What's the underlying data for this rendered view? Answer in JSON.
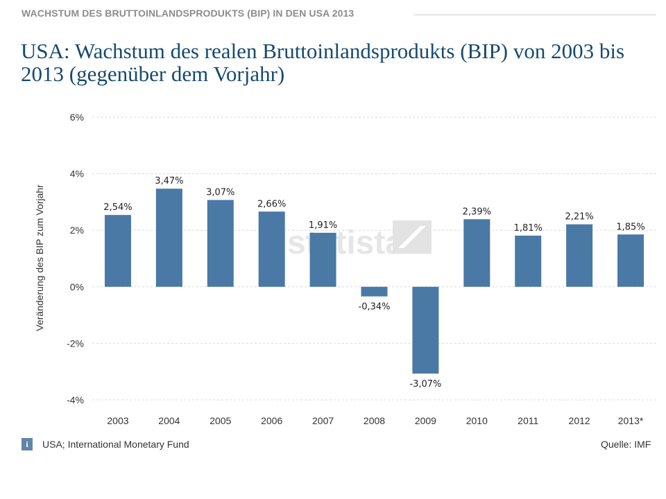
{
  "header": {
    "kicker": "WACHSTUM DES BRUTTOINLANDSPRODUKTS (BIP) IN DEN USA 2013",
    "title": "USA: Wachstum des realen Bruttoinlandsprodukts (BIP) von 2003 bis 2013 (gegenüber dem Vorjahr)"
  },
  "chart_data": {
    "type": "bar",
    "title": "USA: Wachstum des realen Bruttoinlandsprodukts (BIP) von 2003 bis 2013 (gegenüber dem Vorjahr)",
    "xlabel": "",
    "ylabel": "Veränderung des BIP zum Vorjahr",
    "categories": [
      "2003",
      "2004",
      "2005",
      "2006",
      "2007",
      "2008",
      "2009",
      "2010",
      "2011",
      "2012",
      "2013*"
    ],
    "values": [
      2.54,
      3.47,
      3.07,
      2.66,
      1.91,
      -0.34,
      -3.07,
      2.39,
      1.81,
      2.21,
      1.85
    ],
    "value_labels": [
      "2,54%",
      "3,47%",
      "3,07%",
      "2,66%",
      "1,91%",
      "-0,34%",
      "-3,07%",
      "2,39%",
      "1,81%",
      "2,21%",
      "1,85%"
    ],
    "ylim": [
      -4,
      6
    ],
    "yticks": [
      6,
      4,
      2,
      0,
      -2,
      -4
    ],
    "ytick_labels": [
      "6%",
      "4%",
      "2%",
      "0%",
      "-2%",
      "-4%"
    ],
    "grid": true,
    "bar_color": "#4a79a5",
    "watermark": "statista"
  },
  "footer": {
    "info_icon": "info-icon",
    "source_note": "USA; International Monetary Fund",
    "source": "Quelle: IMF"
  }
}
